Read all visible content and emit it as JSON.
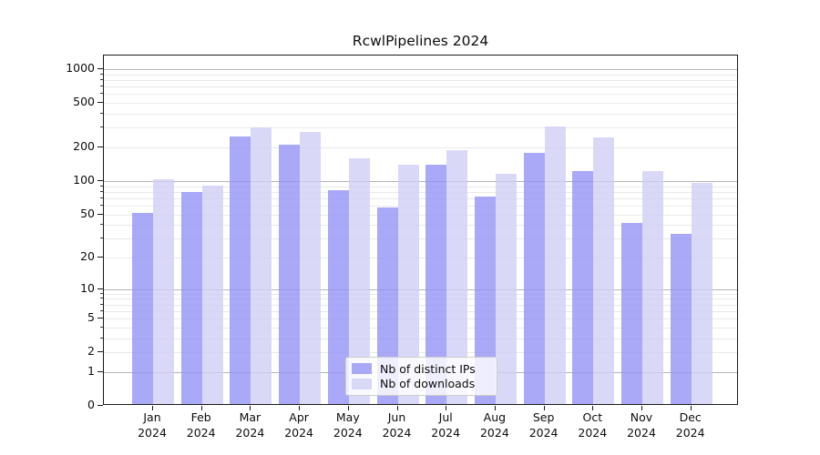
{
  "chart_data": {
    "type": "bar",
    "title": "RcwlPipelines 2024",
    "categories": [
      "Jan",
      "Feb",
      "Mar",
      "Apr",
      "May",
      "Jun",
      "Jul",
      "Aug",
      "Sep",
      "Oct",
      "Nov",
      "Dec"
    ],
    "year_label": "2024",
    "x_tick_format": "month newline year",
    "series": [
      {
        "name": "Nb of distinct IPs",
        "color": "rgba(148,148,245,0.8)",
        "values": [
          50,
          76,
          240,
          205,
          80,
          56,
          136,
          70,
          172,
          118,
          40,
          32
        ]
      },
      {
        "name": "Nb of downloads",
        "color": "rgba(208,208,245,0.8)",
        "values": [
          100,
          87,
          290,
          264,
          155,
          136,
          182,
          112,
          297,
          236,
          118,
          93
        ]
      }
    ],
    "xlabel": "",
    "ylabel": "",
    "yscale": "log10(1+x)",
    "ylim": [
      0,
      1300
    ],
    "yticks": [
      0,
      1,
      2,
      5,
      10,
      20,
      50,
      100,
      200,
      500,
      1000
    ],
    "major_gridline_values": [
      1,
      10,
      100,
      1000
    ],
    "grid": true,
    "legend_position": "lower center inside plot"
  },
  "style": {
    "major_grid_color": "#b5b5b5",
    "minor_grid_color": "#e9e9e9",
    "spine_color": "#1a1a1a",
    "text_color": "#0d0d0d",
    "background": "#ffffff"
  }
}
